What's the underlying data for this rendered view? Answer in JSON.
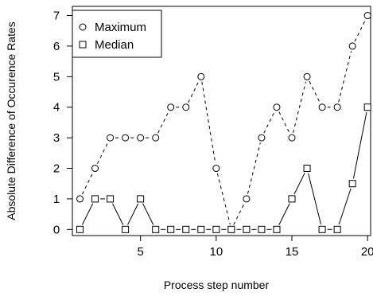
{
  "chart_data": {
    "type": "scatter",
    "xlabel": "Process step number",
    "ylabel": "Absolute Difference of Occurence Rates",
    "xlim": [
      0.5,
      20.2
    ],
    "ylim": [
      -0.2,
      7.3
    ],
    "x_ticks": [
      5,
      10,
      15,
      20
    ],
    "y_ticks": [
      0,
      1,
      2,
      3,
      4,
      5,
      6,
      7
    ],
    "legend_position": "top-left",
    "series": [
      {
        "name": "Maximum",
        "marker": "circle",
        "line": "dashed",
        "x": [
          1,
          2,
          3,
          4,
          5,
          6,
          7,
          8,
          9,
          10,
          11,
          12,
          13,
          14,
          15,
          16,
          17,
          18,
          19,
          20
        ],
        "values": [
          1,
          2,
          3,
          3,
          3,
          3,
          4,
          4,
          5,
          2,
          0,
          1,
          3,
          4,
          3,
          5,
          4,
          4,
          6,
          7
        ]
      },
      {
        "name": "Median",
        "marker": "square",
        "line": "solid",
        "x": [
          1,
          2,
          3,
          4,
          5,
          6,
          7,
          8,
          9,
          10,
          11,
          12,
          13,
          14,
          15,
          16,
          17,
          18,
          19,
          20
        ],
        "values": [
          0,
          1,
          1,
          0,
          1,
          0,
          0,
          0,
          0,
          0,
          0,
          0,
          0,
          0,
          1,
          2,
          0,
          0,
          1.5,
          4
        ]
      }
    ]
  }
}
